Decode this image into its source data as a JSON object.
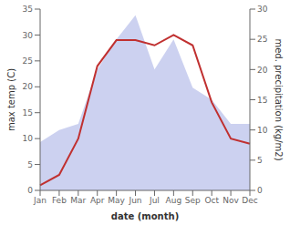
{
  "chart_data": {
    "type": "line",
    "categories": [
      "Jan",
      "Feb",
      "Mar",
      "Apr",
      "May",
      "Jun",
      "Jul",
      "Aug",
      "Sep",
      "Oct",
      "Nov",
      "Dec"
    ],
    "series": [
      {
        "type": "area",
        "axis": "y2",
        "color": "#b0b8e8",
        "values": [
          8,
          10,
          11,
          20,
          25,
          29,
          20,
          25,
          17,
          15,
          11,
          11
        ]
      },
      {
        "type": "line",
        "color": "#c03030",
        "values": [
          1,
          3,
          10,
          24,
          29,
          29,
          28,
          30,
          28,
          17,
          10,
          9
        ]
      }
    ],
    "xlabel": "date (month)",
    "ylabel": "max temp (C)",
    "y2label": "med. precipitation (kg/m2)",
    "ylim": [
      0,
      35
    ],
    "yticks": [
      0,
      5,
      10,
      15,
      20,
      25,
      30,
      35
    ],
    "y2lim": [
      0,
      30
    ],
    "y2ticks": [
      0,
      5,
      10,
      15,
      20,
      25,
      30
    ],
    "grid": false
  }
}
